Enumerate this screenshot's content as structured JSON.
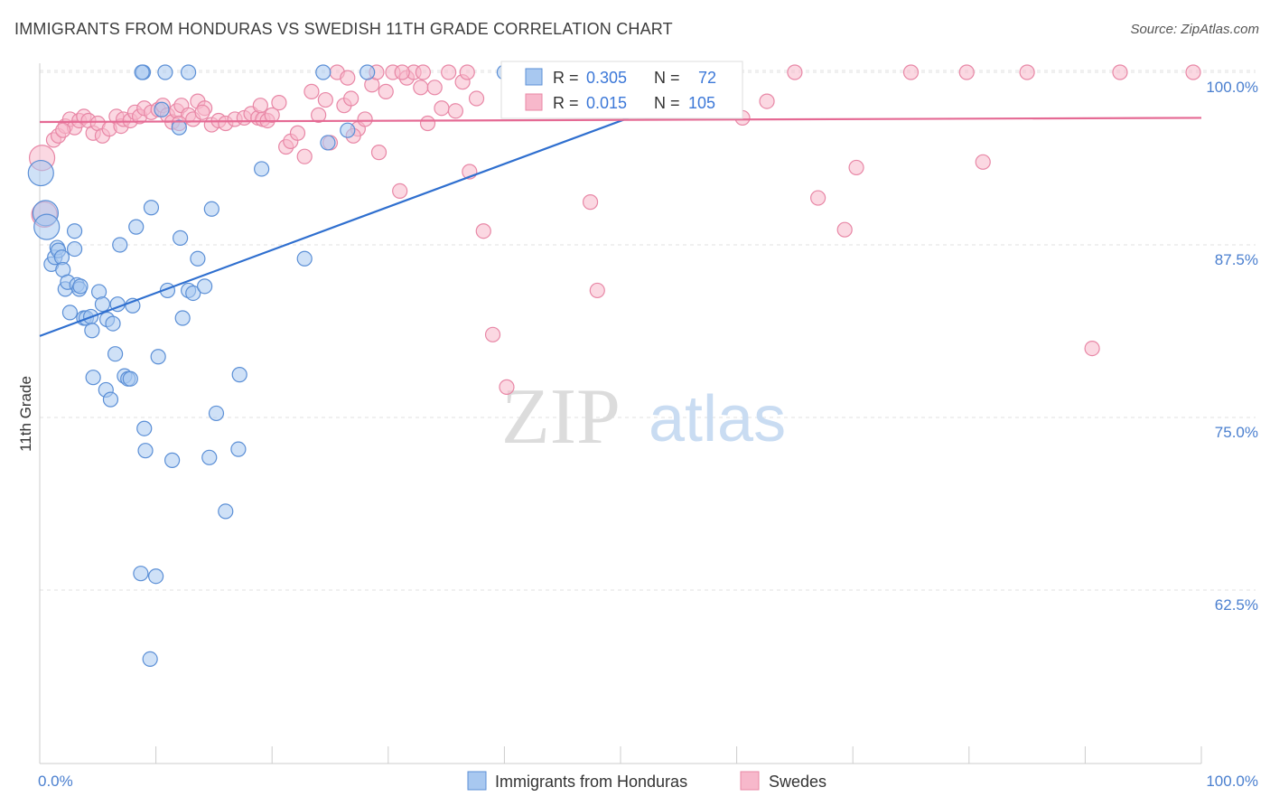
{
  "title": "IMMIGRANTS FROM HONDURAS VS SWEDISH 11TH GRADE CORRELATION CHART",
  "source": "Source: ZipAtlas.com",
  "watermark": {
    "zip": "ZIP",
    "atlas": "atlas"
  },
  "colors": {
    "blue_fill": "#a8c8f0",
    "blue_stroke": "#5b8fd6",
    "blue_line": "#2f6fcf",
    "pink_fill": "#f7b8cb",
    "pink_stroke": "#e887a6",
    "pink_line": "#e56a94",
    "axis_text": "#4a7fcf",
    "grid": "#e0e0e0"
  },
  "legend": {
    "rows": [
      {
        "r_label": "R =",
        "r_value": "0.305",
        "n_label": "N =",
        "n_value": "72"
      },
      {
        "r_label": "R =",
        "r_value": "0.015",
        "n_label": "N =",
        "n_value": "105"
      }
    ]
  },
  "chart_data": {
    "type": "scatter",
    "xlabel": "",
    "ylabel": "11th Grade",
    "xlim": [
      0,
      100
    ],
    "ylim": [
      52.5,
      101.5
    ],
    "x_tick_labels": [
      "0.0%",
      "100.0%"
    ],
    "y_ticks": [
      62.5,
      75.0,
      87.5,
      100.0
    ],
    "y_tick_labels": [
      "62.5%",
      "75.0%",
      "87.5%",
      "100.0%"
    ],
    "series": [
      {
        "name": "Immigrants from Honduras",
        "trend": {
          "x": [
            0,
            52
          ],
          "y": [
            80.9,
            97.1
          ]
        },
        "points": [
          [
            0.1,
            92.7
          ],
          [
            0.5,
            89.8
          ],
          [
            0.6,
            88.8
          ],
          [
            1.0,
            86.1
          ],
          [
            1.3,
            86.6
          ],
          [
            1.5,
            87.3
          ],
          [
            1.6,
            87.1
          ],
          [
            1.9,
            86.6
          ],
          [
            2.0,
            85.7
          ],
          [
            2.2,
            84.3
          ],
          [
            2.4,
            84.8
          ],
          [
            2.6,
            82.6
          ],
          [
            3.0,
            88.5
          ],
          [
            3.0,
            87.2
          ],
          [
            3.2,
            84.6
          ],
          [
            3.4,
            84.3
          ],
          [
            3.5,
            84.5
          ],
          [
            3.8,
            82.2
          ],
          [
            4.0,
            82.2
          ],
          [
            4.4,
            82.3
          ],
          [
            4.5,
            81.3
          ],
          [
            4.6,
            77.9
          ],
          [
            5.1,
            84.1
          ],
          [
            5.4,
            83.2
          ],
          [
            5.7,
            77.0
          ],
          [
            5.8,
            82.1
          ],
          [
            6.1,
            76.3
          ],
          [
            6.3,
            81.8
          ],
          [
            6.5,
            79.6
          ],
          [
            6.7,
            83.2
          ],
          [
            6.9,
            87.5
          ],
          [
            7.3,
            78.0
          ],
          [
            7.6,
            77.8
          ],
          [
            7.8,
            77.8
          ],
          [
            8.0,
            83.1
          ],
          [
            8.3,
            88.8
          ],
          [
            8.7,
            63.7
          ],
          [
            8.9,
            100.0
          ],
          [
            9.0,
            74.2
          ],
          [
            9.1,
            72.6
          ],
          [
            9.5,
            57.5
          ],
          [
            9.6,
            90.2
          ],
          [
            10.0,
            63.5
          ],
          [
            10.2,
            79.4
          ],
          [
            10.5,
            97.3
          ],
          [
            10.8,
            100.0
          ],
          [
            11.0,
            84.2
          ],
          [
            11.4,
            71.9
          ],
          [
            12.1,
            88.0
          ],
          [
            12.0,
            96.0
          ],
          [
            12.3,
            82.2
          ],
          [
            12.8,
            84.2
          ],
          [
            13.2,
            84.0
          ],
          [
            13.6,
            86.5
          ],
          [
            14.2,
            84.5
          ],
          [
            14.6,
            72.1
          ],
          [
            14.8,
            90.1
          ],
          [
            15.2,
            75.3
          ],
          [
            16.0,
            68.2
          ],
          [
            17.1,
            72.7
          ],
          [
            17.2,
            78.1
          ],
          [
            19.1,
            93.0
          ],
          [
            22.8,
            86.5
          ],
          [
            24.4,
            100.0
          ],
          [
            24.8,
            94.9
          ],
          [
            26.5,
            95.8
          ],
          [
            28.2,
            100.0
          ],
          [
            8.8,
            100.0
          ],
          [
            12.8,
            100.0
          ],
          [
            40.0,
            100.0
          ],
          [
            45.0,
            100.0
          ],
          [
            50.0,
            100.0
          ]
        ]
      },
      {
        "name": "Swedes",
        "trend": {
          "x": [
            0,
            100
          ],
          "y": [
            96.4,
            96.7
          ]
        },
        "points": [
          [
            0.2,
            93.8
          ],
          [
            0.4,
            89.7
          ],
          [
            1.2,
            95.1
          ],
          [
            1.6,
            95.4
          ],
          [
            2.2,
            96.1
          ],
          [
            2.6,
            96.6
          ],
          [
            3.0,
            96.0
          ],
          [
            3.4,
            96.5
          ],
          [
            3.8,
            96.8
          ],
          [
            4.2,
            96.5
          ],
          [
            4.6,
            95.6
          ],
          [
            5.0,
            96.3
          ],
          [
            5.4,
            95.4
          ],
          [
            6.0,
            95.9
          ],
          [
            6.6,
            96.8
          ],
          [
            7.0,
            96.1
          ],
          [
            7.2,
            96.6
          ],
          [
            7.8,
            96.5
          ],
          [
            8.2,
            97.1
          ],
          [
            8.6,
            96.8
          ],
          [
            9.0,
            97.4
          ],
          [
            9.6,
            97.1
          ],
          [
            10.2,
            97.3
          ],
          [
            10.6,
            97.6
          ],
          [
            11.0,
            96.9
          ],
          [
            11.4,
            96.4
          ],
          [
            11.8,
            97.2
          ],
          [
            12.2,
            97.6
          ],
          [
            12.8,
            96.9
          ],
          [
            13.2,
            96.6
          ],
          [
            13.6,
            97.9
          ],
          [
            14.2,
            97.4
          ],
          [
            14.8,
            96.2
          ],
          [
            15.4,
            96.5
          ],
          [
            16.0,
            96.3
          ],
          [
            16.8,
            96.6
          ],
          [
            17.6,
            96.7
          ],
          [
            18.2,
            97.0
          ],
          [
            18.8,
            96.7
          ],
          [
            19.2,
            96.6
          ],
          [
            19.6,
            96.5
          ],
          [
            20.0,
            96.9
          ],
          [
            20.6,
            97.8
          ],
          [
            21.2,
            94.6
          ],
          [
            21.6,
            95.0
          ],
          [
            22.2,
            95.6
          ],
          [
            22.8,
            93.9
          ],
          [
            23.4,
            98.6
          ],
          [
            24.0,
            96.9
          ],
          [
            24.6,
            98.0
          ],
          [
            25.0,
            94.9
          ],
          [
            25.6,
            100.0
          ],
          [
            26.2,
            97.6
          ],
          [
            26.8,
            98.1
          ],
          [
            27.4,
            95.9
          ],
          [
            28.0,
            96.6
          ],
          [
            28.6,
            99.1
          ],
          [
            29.2,
            94.2
          ],
          [
            29.8,
            98.6
          ],
          [
            30.4,
            100.0
          ],
          [
            31.0,
            91.4
          ],
          [
            31.6,
            99.6
          ],
          [
            32.2,
            100.0
          ],
          [
            32.8,
            98.9
          ],
          [
            33.4,
            96.3
          ],
          [
            34.0,
            98.9
          ],
          [
            34.6,
            97.4
          ],
          [
            35.2,
            100.0
          ],
          [
            35.8,
            97.2
          ],
          [
            36.4,
            99.3
          ],
          [
            37.0,
            92.8
          ],
          [
            37.6,
            98.1
          ],
          [
            38.2,
            88.5
          ],
          [
            39.0,
            81.0
          ],
          [
            40.2,
            77.2
          ],
          [
            45.0,
            100.0
          ],
          [
            47.4,
            90.6
          ],
          [
            48.0,
            84.2
          ],
          [
            50.0,
            100.0
          ],
          [
            53.0,
            100.0
          ],
          [
            56.0,
            100.0
          ],
          [
            59.0,
            100.0
          ],
          [
            60.5,
            96.7
          ],
          [
            62.6,
            97.9
          ],
          [
            65.0,
            100.0
          ],
          [
            67.0,
            90.9
          ],
          [
            69.3,
            88.6
          ],
          [
            70.3,
            93.1
          ],
          [
            75.0,
            100.0
          ],
          [
            79.8,
            100.0
          ],
          [
            81.2,
            93.5
          ],
          [
            85.0,
            100.0
          ],
          [
            90.6,
            80.0
          ],
          [
            93.0,
            100.0
          ],
          [
            99.3,
            100.0
          ],
          [
            26.5,
            99.6
          ],
          [
            29.0,
            100.0
          ],
          [
            14.0,
            97.1
          ],
          [
            19.0,
            97.6
          ],
          [
            31.2,
            100.0
          ],
          [
            33.0,
            100.0
          ],
          [
            27.0,
            95.4
          ],
          [
            12.0,
            96.3
          ],
          [
            36.8,
            100.0
          ],
          [
            2.0,
            95.8
          ]
        ]
      }
    ]
  },
  "bottom_legend": [
    {
      "label": "Immigrants from Honduras"
    },
    {
      "label": "Swedes"
    }
  ]
}
